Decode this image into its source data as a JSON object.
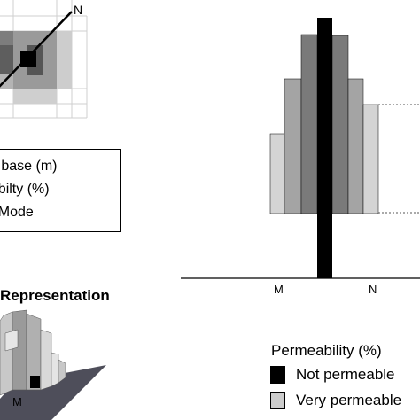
{
  "grid_panel": {
    "direction_label": "N"
  },
  "parameters_box": {
    "lines": [
      "py base (m)",
      "eabilty (%)",
      "onMode"
    ]
  },
  "representation_panel": {
    "title": "Representation",
    "corner_label": "M"
  },
  "profile_chart": {
    "axis_labels": [
      "M",
      "N"
    ]
  },
  "legend": {
    "title": "Permeability (%)",
    "items": [
      {
        "label": "Not permeable",
        "color": "#000000"
      },
      {
        "label": "Very permeable",
        "color": "#cccccc"
      }
    ]
  },
  "colors": {
    "bar_light": "#d4d4d4",
    "bar_mid": "#a4a4a4",
    "bar_dark": "#7a7a7a",
    "bar_center": "#000000"
  }
}
